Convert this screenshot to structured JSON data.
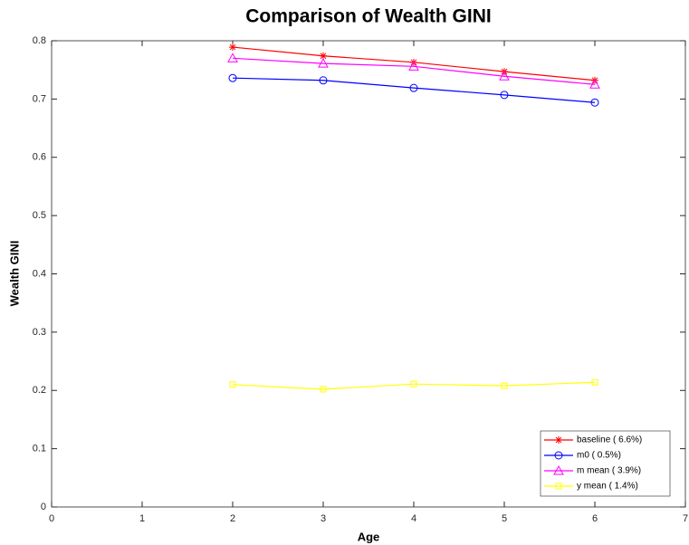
{
  "chart_data": {
    "type": "line",
    "title": "Comparison of Wealth GINI",
    "x_label": "Age",
    "y_label": "Wealth GINI",
    "x": [
      2,
      3,
      4,
      5,
      6
    ],
    "series": [
      {
        "name": "baseline ( 6.6%)",
        "color": "#ff0000",
        "marker": "*",
        "values": [
          0.789,
          0.774,
          0.763,
          0.747,
          0.732
        ]
      },
      {
        "name": "m0 ( 0.5%)",
        "color": "#0000ff",
        "marker": "o",
        "values": [
          0.736,
          0.732,
          0.719,
          0.707,
          0.694
        ]
      },
      {
        "name": "m mean ( 3.9%)",
        "color": "#ff00ff",
        "marker": "^",
        "values": [
          0.77,
          0.761,
          0.756,
          0.739,
          0.725
        ]
      },
      {
        "name": "y mean ( 1.4%)",
        "color": "#ffff00",
        "marker": "s",
        "values": [
          0.21,
          0.202,
          0.211,
          0.208,
          0.214
        ]
      }
    ],
    "xlim": [
      0,
      7
    ],
    "xticks": [
      0,
      1,
      2,
      3,
      4,
      5,
      6,
      7
    ],
    "ylim": [
      0,
      0.8
    ],
    "yticks": [
      0,
      0.1,
      0.2,
      0.3,
      0.4,
      0.5,
      0.6,
      0.7,
      0.8
    ],
    "grid": false,
    "legend": "lower right"
  }
}
